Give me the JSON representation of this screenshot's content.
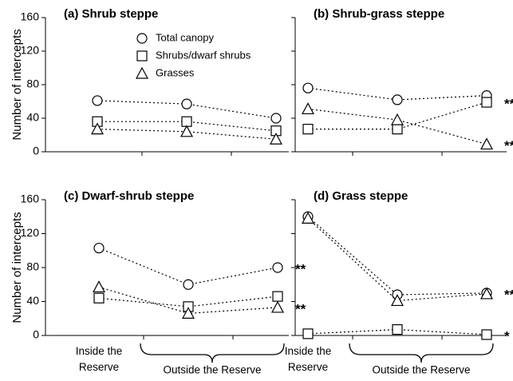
{
  "chart_data": [
    {
      "type": "line",
      "title": "(a) Shrub steppe",
      "y_label": "Number of intercepts",
      "categories": [
        null,
        null,
        null
      ],
      "ylim": [
        0,
        160
      ],
      "yticks": [
        0,
        40,
        80,
        120,
        160
      ],
      "show_ytick_labels": true,
      "legend": true,
      "series": [
        {
          "name": "Total canopy",
          "marker": "circle",
          "color": "#000000",
          "values": [
            61,
            57,
            40
          ]
        },
        {
          "name": "Shrubs/dwarf shrubs",
          "marker": "square",
          "color": "#000000",
          "values": [
            36,
            36,
            25
          ]
        },
        {
          "name": "Grasses",
          "marker": "triangle",
          "color": "#000000",
          "values": [
            27,
            24,
            15
          ]
        }
      ],
      "annotations": []
    },
    {
      "type": "line",
      "title": "(b) Shrub-grass steppe",
      "categories": [
        null,
        null,
        null
      ],
      "ylim": [
        0,
        160
      ],
      "yticks": [
        0,
        40,
        80,
        120,
        160
      ],
      "show_ytick_labels": false,
      "legend": false,
      "series": [
        {
          "name": "Total canopy",
          "marker": "circle",
          "color": "#000000",
          "values": [
            76,
            62,
            67
          ]
        },
        {
          "name": "Shrubs/dwarf shrubs",
          "marker": "square",
          "color": "#000000",
          "values": [
            27,
            27,
            59
          ]
        },
        {
          "name": "Grasses",
          "marker": "triangle",
          "color": "#000000",
          "values": [
            51,
            38,
            9
          ]
        }
      ],
      "annotations": [
        {
          "text": "***",
          "series": 1
        },
        {
          "text": "***",
          "series": 2
        }
      ]
    },
    {
      "type": "line",
      "title": "(c) Dwarf-shrub steppe",
      "y_label": "Number of intercepts",
      "categories": [
        "Inside the Reserve",
        null,
        null
      ],
      "group_label": "Outside the Reserve",
      "ylim": [
        0,
        160
      ],
      "yticks": [
        0,
        40,
        80,
        120,
        160
      ],
      "show_ytick_labels": true,
      "legend": false,
      "series": [
        {
          "name": "Total canopy",
          "marker": "circle",
          "color": "#000000",
          "values": [
            103,
            60,
            80
          ]
        },
        {
          "name": "Shrubs/dwarf shrubs",
          "marker": "square",
          "color": "#000000",
          "values": [
            44,
            34,
            46
          ]
        },
        {
          "name": "Grasses",
          "marker": "triangle",
          "color": "#000000",
          "values": [
            57,
            26,
            33
          ]
        }
      ],
      "annotations": [
        {
          "text": "**",
          "series": 0
        },
        {
          "text": "**",
          "series": 2
        }
      ]
    },
    {
      "type": "line",
      "title": "(d) Grass steppe",
      "categories": [
        "Inside the Reserve",
        null,
        null
      ],
      "group_label": "Outside the Reserve",
      "ylim": [
        0,
        160
      ],
      "yticks": [
        0,
        40,
        80,
        120,
        160
      ],
      "show_ytick_labels": false,
      "legend": false,
      "series": [
        {
          "name": "Total canopy",
          "marker": "circle",
          "color": "#000000",
          "values": [
            140,
            48,
            50
          ]
        },
        {
          "name": "Shrubs/dwarf shrubs",
          "marker": "square",
          "color": "#000000",
          "values": [
            2,
            7,
            1
          ]
        },
        {
          "name": "Grasses",
          "marker": "triangle",
          "color": "#000000",
          "values": [
            138,
            41,
            49
          ]
        }
      ],
      "annotations": [
        {
          "text": "***",
          "series": 0
        },
        {
          "text": "*",
          "series": 1
        }
      ]
    }
  ]
}
